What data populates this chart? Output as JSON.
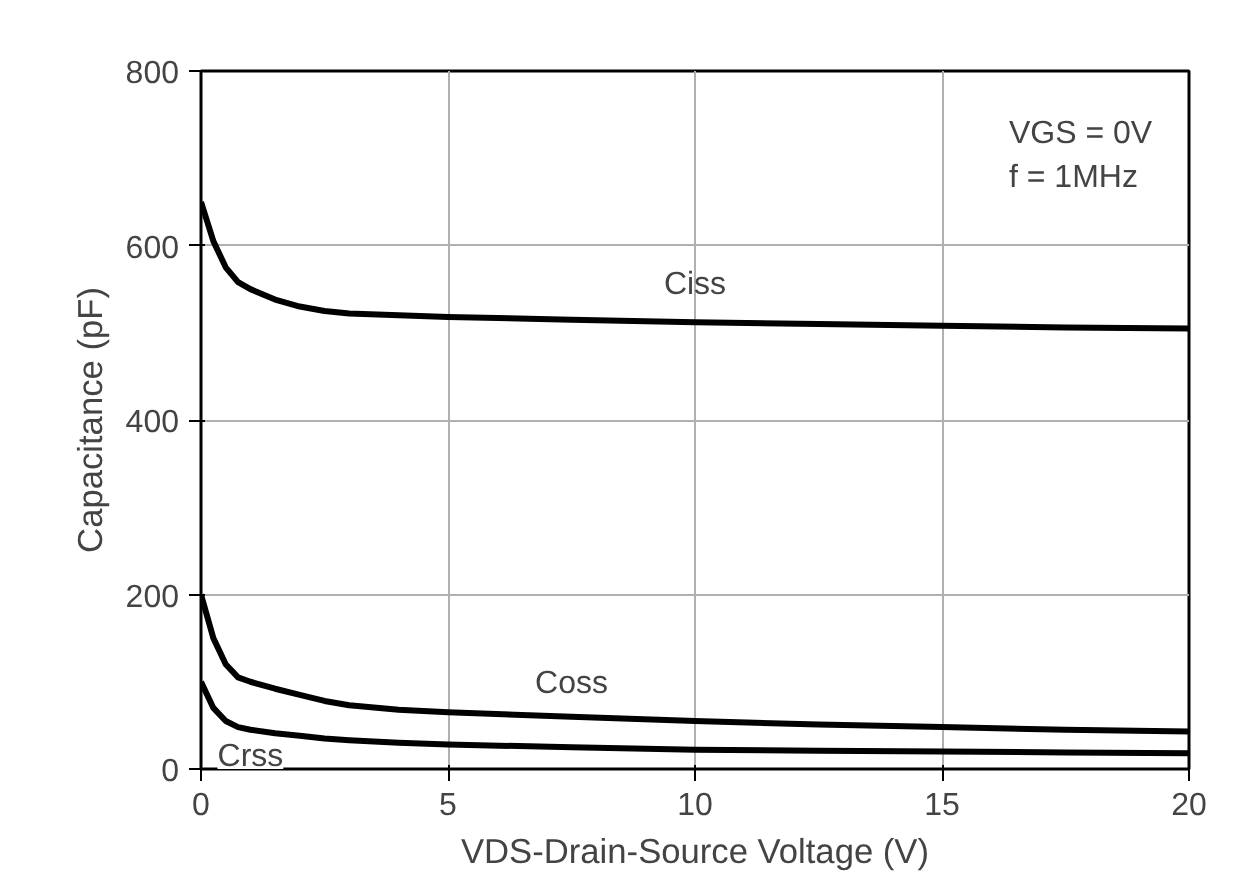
{
  "chart_data": {
    "type": "line",
    "xlabel": "VDS-Drain-Source Voltage (V)",
    "ylabel": "Capacitance (pF)",
    "xlim": [
      0,
      20
    ],
    "xticks": [
      0,
      5,
      10,
      15,
      20
    ],
    "ylim": [
      0,
      800
    ],
    "yticks": [
      0,
      200,
      400,
      600,
      800
    ],
    "grid": true,
    "series": [
      {
        "name": "Ciss",
        "color": "#000000",
        "x": [
          0,
          0.25,
          0.5,
          0.75,
          1,
          1.5,
          2,
          2.5,
          3,
          4,
          5,
          7.5,
          10,
          12.5,
          15,
          17.5,
          20
        ],
        "values": [
          650,
          605,
          575,
          558,
          550,
          538,
          530,
          525,
          522,
          520,
          518,
          515,
          512,
          510,
          508,
          506,
          505
        ]
      },
      {
        "name": "Coss",
        "color": "#000000",
        "x": [
          0,
          0.25,
          0.5,
          0.75,
          1,
          1.5,
          2,
          2.5,
          3,
          4,
          5,
          7.5,
          10,
          12.5,
          15,
          17.5,
          20
        ],
        "values": [
          200,
          150,
          120,
          105,
          100,
          92,
          85,
          78,
          73,
          68,
          65,
          60,
          55,
          51,
          48,
          45,
          43
        ]
      },
      {
        "name": "Crss",
        "color": "#000000",
        "x": [
          0,
          0.25,
          0.5,
          0.75,
          1,
          1.5,
          2,
          2.5,
          3,
          4,
          5,
          7.5,
          10,
          12.5,
          15,
          17.5,
          20
        ],
        "values": [
          100,
          70,
          55,
          48,
          45,
          41,
          38,
          35,
          33,
          30,
          28,
          25,
          22,
          21,
          20,
          19,
          18
        ]
      }
    ],
    "annotations": [
      "VGS = 0V",
      "f = 1MHz"
    ]
  }
}
